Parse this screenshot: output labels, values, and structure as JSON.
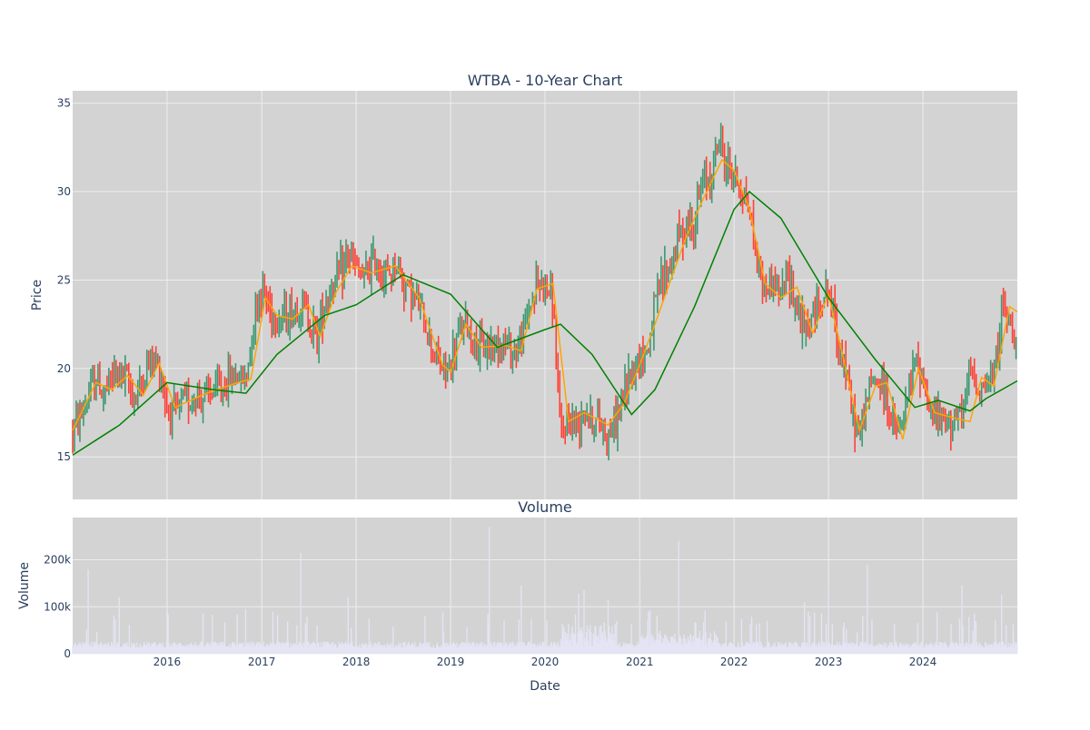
{
  "chart_data": [
    {
      "type": "candlestick",
      "title": "WTBA - 10-Year Chart",
      "ylabel": "Price",
      "xlim": [
        "2015-01-01",
        "2024-12-31"
      ],
      "ylim": [
        12.6,
        35.7
      ],
      "y_ticks": [
        15,
        20,
        25,
        30,
        35
      ],
      "grid": true,
      "legend": "none",
      "colors": {
        "plot_bg": "#d3d3d3",
        "grid": "#eeeeee",
        "increasing": "#3d9970",
        "decreasing": "#ff4136",
        "ma_short": "#ffa500",
        "ma_long": "#008000"
      },
      "price_path": [
        [
          "2015-01-01",
          16.5
        ],
        [
          "2015-02-01",
          17.3
        ],
        [
          "2015-03-01",
          18.3
        ],
        [
          "2015-04-01",
          19.5
        ],
        [
          "2015-05-01",
          18.5
        ],
        [
          "2015-06-01",
          19.5
        ],
        [
          "2015-07-01",
          19.8
        ],
        [
          "2015-08-01",
          19.2
        ],
        [
          "2015-09-01",
          18.3
        ],
        [
          "2015-10-01",
          19.5
        ],
        [
          "2015-11-01",
          20.5
        ],
        [
          "2015-12-01",
          20.2
        ],
        [
          "2016-01-01",
          17.8
        ],
        [
          "2016-02-01",
          17.4
        ],
        [
          "2016-03-01",
          18.0
        ],
        [
          "2016-04-01",
          18.3
        ],
        [
          "2016-05-01",
          18.5
        ],
        [
          "2016-06-01",
          18.4
        ],
        [
          "2016-07-01",
          18.8
        ],
        [
          "2016-08-01",
          18.9
        ],
        [
          "2016-09-01",
          19.5
        ],
        [
          "2016-10-01",
          19.6
        ],
        [
          "2016-11-01",
          19.3
        ],
        [
          "2016-12-01",
          23.0
        ],
        [
          "2017-01-01",
          24.6
        ],
        [
          "2017-02-01",
          23.5
        ],
        [
          "2017-03-01",
          22.8
        ],
        [
          "2017-04-01",
          23.0
        ],
        [
          "2017-05-01",
          23.2
        ],
        [
          "2017-06-01",
          23.6
        ],
        [
          "2017-07-01",
          23.0
        ],
        [
          "2017-08-01",
          21.8
        ],
        [
          "2017-09-01",
          23.8
        ],
        [
          "2017-10-01",
          24.8
        ],
        [
          "2017-11-01",
          25.2
        ],
        [
          "2017-12-01",
          26.6
        ],
        [
          "2018-01-01",
          25.5
        ],
        [
          "2018-02-01",
          25.0
        ],
        [
          "2018-03-01",
          26.0
        ],
        [
          "2018-04-01",
          25.8
        ],
        [
          "2018-05-01",
          25.0
        ],
        [
          "2018-06-01",
          26.0
        ],
        [
          "2018-07-01",
          25.0
        ],
        [
          "2018-08-01",
          24.2
        ],
        [
          "2018-09-01",
          23.5
        ],
        [
          "2018-10-01",
          22.3
        ],
        [
          "2018-11-01",
          20.8
        ],
        [
          "2018-12-01",
          19.9
        ],
        [
          "2019-01-01",
          20.0
        ],
        [
          "2019-02-01",
          22.0
        ],
        [
          "2019-03-01",
          22.5
        ],
        [
          "2019-04-01",
          21.5
        ],
        [
          "2019-05-01",
          21.0
        ],
        [
          "2019-06-01",
          21.3
        ],
        [
          "2019-07-01",
          21.6
        ],
        [
          "2019-08-01",
          21.4
        ],
        [
          "2019-09-01",
          21.0
        ],
        [
          "2019-10-01",
          21.5
        ],
        [
          "2019-11-01",
          23.5
        ],
        [
          "2019-12-01",
          24.8
        ],
        [
          "2020-01-01",
          24.8
        ],
        [
          "2020-02-01",
          23.8
        ],
        [
          "2020-03-01",
          16.0
        ],
        [
          "2020-04-01",
          17.2
        ],
        [
          "2020-05-01",
          16.8
        ],
        [
          "2020-06-01",
          18.0
        ],
        [
          "2020-07-01",
          17.0
        ],
        [
          "2020-08-01",
          17.0
        ],
        [
          "2020-09-01",
          16.2
        ],
        [
          "2020-10-01",
          17.0
        ],
        [
          "2020-11-01",
          18.5
        ],
        [
          "2020-12-01",
          20.0
        ],
        [
          "2021-01-01",
          20.6
        ],
        [
          "2021-02-01",
          21.0
        ],
        [
          "2021-03-01",
          23.5
        ],
        [
          "2021-04-01",
          25.2
        ],
        [
          "2021-05-01",
          25.8
        ],
        [
          "2021-06-01",
          27.5
        ],
        [
          "2021-07-01",
          28.0
        ],
        [
          "2021-08-01",
          28.3
        ],
        [
          "2021-09-01",
          30.5
        ],
        [
          "2021-10-01",
          30.8
        ],
        [
          "2021-11-01",
          33.0
        ],
        [
          "2021-12-01",
          31.5
        ],
        [
          "2022-01-01",
          31.0
        ],
        [
          "2022-02-01",
          30.0
        ],
        [
          "2022-03-01",
          29.0
        ],
        [
          "2022-04-01",
          26.0
        ],
        [
          "2022-05-01",
          24.5
        ],
        [
          "2022-06-01",
          25.0
        ],
        [
          "2022-07-01",
          24.0
        ],
        [
          "2022-08-01",
          25.5
        ],
        [
          "2022-09-01",
          23.5
        ],
        [
          "2022-10-01",
          22.0
        ],
        [
          "2022-11-01",
          22.8
        ],
        [
          "2022-12-01",
          24.0
        ],
        [
          "2023-01-01",
          24.5
        ],
        [
          "2023-02-01",
          22.0
        ],
        [
          "2023-03-01",
          20.5
        ],
        [
          "2023-04-01",
          17.5
        ],
        [
          "2023-05-01",
          16.2
        ],
        [
          "2023-06-01",
          18.5
        ],
        [
          "2023-07-01",
          19.5
        ],
        [
          "2023-08-01",
          19.0
        ],
        [
          "2023-09-01",
          17.0
        ],
        [
          "2023-10-01",
          16.2
        ],
        [
          "2023-11-01",
          18.0
        ],
        [
          "2023-12-01",
          20.5
        ],
        [
          "2024-01-01",
          19.5
        ],
        [
          "2024-02-01",
          17.5
        ],
        [
          "2024-03-01",
          17.2
        ],
        [
          "2024-04-01",
          16.8
        ],
        [
          "2024-05-01",
          17.5
        ],
        [
          "2024-06-01",
          17.0
        ],
        [
          "2024-07-01",
          20.0
        ],
        [
          "2024-08-01",
          19.0
        ],
        [
          "2024-09-01",
          19.0
        ],
        [
          "2024-10-01",
          19.5
        ],
        [
          "2024-11-01",
          23.5
        ],
        [
          "2024-12-01",
          22.5
        ],
        [
          "2024-12-31",
          22.0
        ]
      ],
      "ma_short": [
        [
          "2015-01-01",
          16.5
        ],
        [
          "2015-04-01",
          19.2
        ],
        [
          "2015-06-01",
          18.8
        ],
        [
          "2015-08-01",
          19.6
        ],
        [
          "2015-10-01",
          18.5
        ],
        [
          "2015-12-01",
          20.3
        ],
        [
          "2016-02-01",
          17.8
        ],
        [
          "2016-06-01",
          18.6
        ],
        [
          "2016-10-01",
          19.2
        ],
        [
          "2016-11-20",
          19.4
        ],
        [
          "2017-01-15",
          24.0
        ],
        [
          "2017-03-01",
          23.0
        ],
        [
          "2017-05-01",
          22.8
        ],
        [
          "2017-07-01",
          23.6
        ],
        [
          "2017-08-15",
          21.8
        ],
        [
          "2017-10-15",
          24.3
        ],
        [
          "2017-12-15",
          25.8
        ],
        [
          "2018-03-01",
          25.4
        ],
        [
          "2018-06-01",
          25.8
        ],
        [
          "2018-09-01",
          24.0
        ],
        [
          "2018-12-01",
          20.2
        ],
        [
          "2019-01-01",
          19.8
        ],
        [
          "2019-03-01",
          22.5
        ],
        [
          "2019-05-01",
          21.2
        ],
        [
          "2019-08-01",
          21.3
        ],
        [
          "2019-10-01",
          21.0
        ],
        [
          "2019-12-01",
          24.5
        ],
        [
          "2020-02-01",
          24.8
        ],
        [
          "2020-04-01",
          17.0
        ],
        [
          "2020-06-01",
          17.5
        ],
        [
          "2020-09-01",
          16.8
        ],
        [
          "2020-11-01",
          18.0
        ],
        [
          "2021-01-01",
          20.2
        ],
        [
          "2021-03-01",
          22.5
        ],
        [
          "2021-05-01",
          25.0
        ],
        [
          "2021-07-01",
          27.5
        ],
        [
          "2021-09-01",
          29.5
        ],
        [
          "2021-11-15",
          31.8
        ],
        [
          "2022-01-01",
          31.2
        ],
        [
          "2022-03-01",
          29.0
        ],
        [
          "2022-05-01",
          24.8
        ],
        [
          "2022-07-01",
          24.0
        ],
        [
          "2022-09-01",
          24.6
        ],
        [
          "2022-11-01",
          22.0
        ],
        [
          "2023-01-01",
          24.2
        ],
        [
          "2023-03-01",
          20.5
        ],
        [
          "2023-05-01",
          16.5
        ],
        [
          "2023-07-01",
          19.0
        ],
        [
          "2023-08-15",
          19.2
        ],
        [
          "2023-10-15",
          16.0
        ],
        [
          "2023-12-15",
          20.0
        ],
        [
          "2024-02-15",
          17.5
        ],
        [
          "2024-05-01",
          17.2
        ],
        [
          "2024-07-01",
          17.0
        ],
        [
          "2024-08-15",
          19.5
        ],
        [
          "2024-10-01",
          19.0
        ],
        [
          "2024-12-01",
          23.5
        ],
        [
          "2024-12-31",
          23.2
        ]
      ],
      "ma_long": [
        [
          "2015-01-01",
          15.1
        ],
        [
          "2015-07-01",
          16.8
        ],
        [
          "2016-01-01",
          19.2
        ],
        [
          "2016-07-01",
          18.8
        ],
        [
          "2016-11-01",
          18.6
        ],
        [
          "2017-03-01",
          20.8
        ],
        [
          "2017-09-01",
          23.0
        ],
        [
          "2018-01-01",
          23.6
        ],
        [
          "2018-07-01",
          25.3
        ],
        [
          "2019-01-01",
          24.2
        ],
        [
          "2019-07-01",
          21.2
        ],
        [
          "2020-01-01",
          22.2
        ],
        [
          "2020-03-01",
          22.5
        ],
        [
          "2020-07-01",
          20.8
        ],
        [
          "2020-12-01",
          17.4
        ],
        [
          "2021-03-01",
          18.8
        ],
        [
          "2021-08-01",
          23.5
        ],
        [
          "2022-01-01",
          29.0
        ],
        [
          "2022-03-01",
          30.0
        ],
        [
          "2022-07-01",
          28.5
        ],
        [
          "2023-01-01",
          24.0
        ],
        [
          "2023-07-01",
          20.5
        ],
        [
          "2023-12-01",
          17.8
        ],
        [
          "2024-03-01",
          18.2
        ],
        [
          "2024-07-01",
          17.6
        ],
        [
          "2024-09-01",
          18.3
        ],
        [
          "2024-12-31",
          19.3
        ]
      ]
    },
    {
      "type": "bar",
      "title": "Volume",
      "xlabel": "Date",
      "ylabel": "Volume",
      "xlim": [
        "2015-01-01",
        "2024-12-31"
      ],
      "ylim": [
        0,
        290000
      ],
      "y_ticks": [
        {
          "value": 0,
          "label": "0"
        },
        {
          "value": 100000,
          "label": "100k"
        },
        {
          "value": 200000,
          "label": "200k"
        }
      ],
      "x_ticks": [
        "2016",
        "2017",
        "2018",
        "2019",
        "2020",
        "2021",
        "2022",
        "2023",
        "2024"
      ],
      "grid": true,
      "colors": {
        "plot_bg": "#d3d3d3",
        "bar": "#e4e4f4"
      },
      "spikes": [
        [
          "2015-03-01",
          180000
        ],
        [
          "2015-07-01",
          120000
        ],
        [
          "2016-11-01",
          95000
        ],
        [
          "2017-06-01",
          215000
        ],
        [
          "2017-12-01",
          120000
        ],
        [
          "2019-06-01",
          270000
        ],
        [
          "2019-10-01",
          145000
        ],
        [
          "2020-06-01",
          135000
        ],
        [
          "2021-01-01",
          155000
        ],
        [
          "2021-06-01",
          240000
        ],
        [
          "2022-10-01",
          110000
        ],
        [
          "2023-01-01",
          150000
        ],
        [
          "2023-06-01",
          190000
        ],
        [
          "2024-06-01",
          145000
        ],
        [
          "2024-11-01",
          125000
        ]
      ]
    }
  ]
}
